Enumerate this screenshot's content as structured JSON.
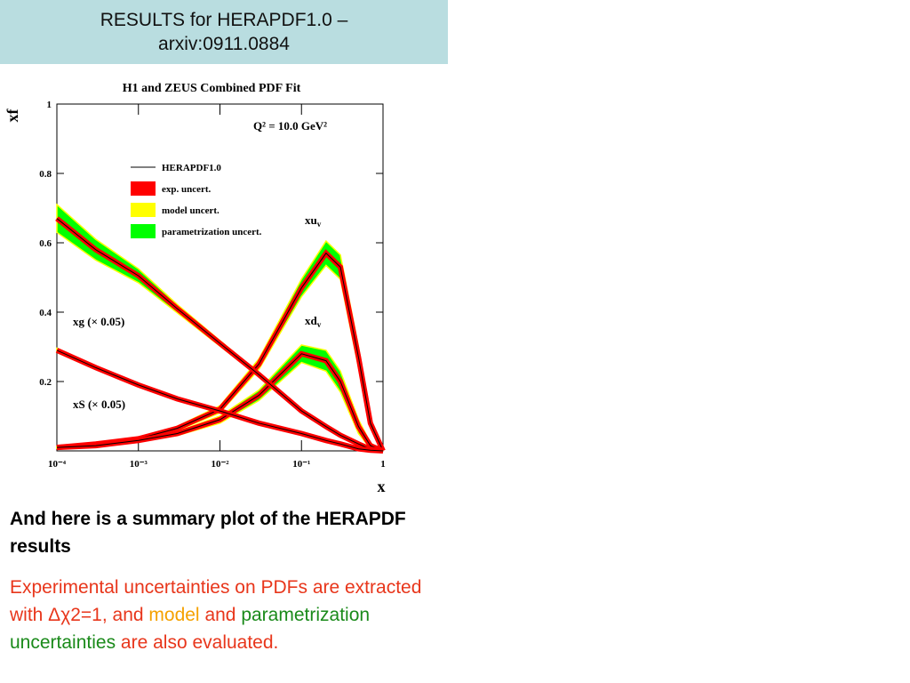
{
  "header": {
    "title": [
      "RESULTS for HERAPDF1.0 –",
      "arxiv:0911.0884"
    ]
  },
  "chart_data": {
    "type": "line",
    "title": "H1 and ZEUS Combined PDF Fit",
    "y_label": "xf",
    "x_label": "x",
    "annotation": "Q² =  10.0 GeV²",
    "log_x": true,
    "xlim": [
      0.0001,
      1
    ],
    "ylim": [
      0,
      1
    ],
    "xticks": [
      {
        "value": 0.0001,
        "label": "10⁻⁴"
      },
      {
        "value": 0.001,
        "label": "10⁻³"
      },
      {
        "value": 0.01,
        "label": "10⁻²"
      },
      {
        "value": 0.1,
        "label": "10⁻¹"
      },
      1
    ],
    "yticks": [
      0.2,
      0.4,
      0.6,
      0.8,
      1
    ],
    "x": [
      0.0001,
      0.0003,
      0.001,
      0.003,
      0.01,
      0.03,
      0.1,
      0.2,
      0.3,
      0.5,
      0.7,
      1
    ],
    "legend": [
      {
        "name": "HERAPDF1.0",
        "color": "#000000"
      },
      {
        "name": "exp. uncert.",
        "color": "#ff0000"
      },
      {
        "name": "model uncert.",
        "color": "#ffff00"
      },
      {
        "name": "parametrization uncert.",
        "color": "#00ff00"
      }
    ],
    "series": [
      {
        "name": "xu",
        "sub": "v",
        "values": [
          0.01,
          0.02,
          0.035,
          0.065,
          0.12,
          0.25,
          0.47,
          0.57,
          0.53,
          0.27,
          0.08,
          0
        ],
        "errors": [
          0.002,
          0.003,
          0.004,
          0.006,
          0.01,
          0.015,
          0.025,
          0.035,
          0.035,
          0.03,
          0.015,
          0
        ]
      },
      {
        "name": "xd",
        "sub": "v",
        "values": [
          0.01,
          0.015,
          0.03,
          0.05,
          0.09,
          0.16,
          0.28,
          0.26,
          0.2,
          0.07,
          0.015,
          0
        ],
        "errors": [
          0.002,
          0.003,
          0.004,
          0.006,
          0.01,
          0.015,
          0.025,
          0.03,
          0.03,
          0.02,
          0.008,
          0
        ]
      },
      {
        "name": "xg (× 0.05)",
        "values": [
          0.67,
          0.58,
          0.505,
          0.41,
          0.31,
          0.22,
          0.115,
          0.07,
          0.045,
          0.02,
          0.005,
          0
        ],
        "errors": [
          0.04,
          0.03,
          0.02,
          0.012,
          0.008,
          0.006,
          0.005,
          0.004,
          0.003,
          0.002,
          0.001,
          0
        ]
      },
      {
        "name": "xS (× 0.05)",
        "values": [
          0.29,
          0.24,
          0.19,
          0.15,
          0.115,
          0.08,
          0.05,
          0.03,
          0.02,
          0.006,
          0.002,
          0
        ],
        "errors": [
          0.006,
          0.005,
          0.004,
          0.003,
          0.003,
          0.003,
          0.003,
          0.002,
          0.002,
          0.001,
          0.001,
          0
        ]
      }
    ]
  },
  "body": {
    "heading": "And here is a summary plot of the HERAPDF results",
    "paragraph": [
      {
        "text": "Experimental uncertainties on PDFs are extracted with Δχ2=1, and ",
        "color": "#e8361b"
      },
      {
        "text": "model",
        "color": "#f5a100"
      },
      {
        "text": " and ",
        "color": "#e8361b"
      },
      {
        "text": "parametrization uncertainties",
        "color": "#1a8a1a"
      },
      {
        "text": " are also evaluated.",
        "color": "#e8361b"
      }
    ]
  }
}
